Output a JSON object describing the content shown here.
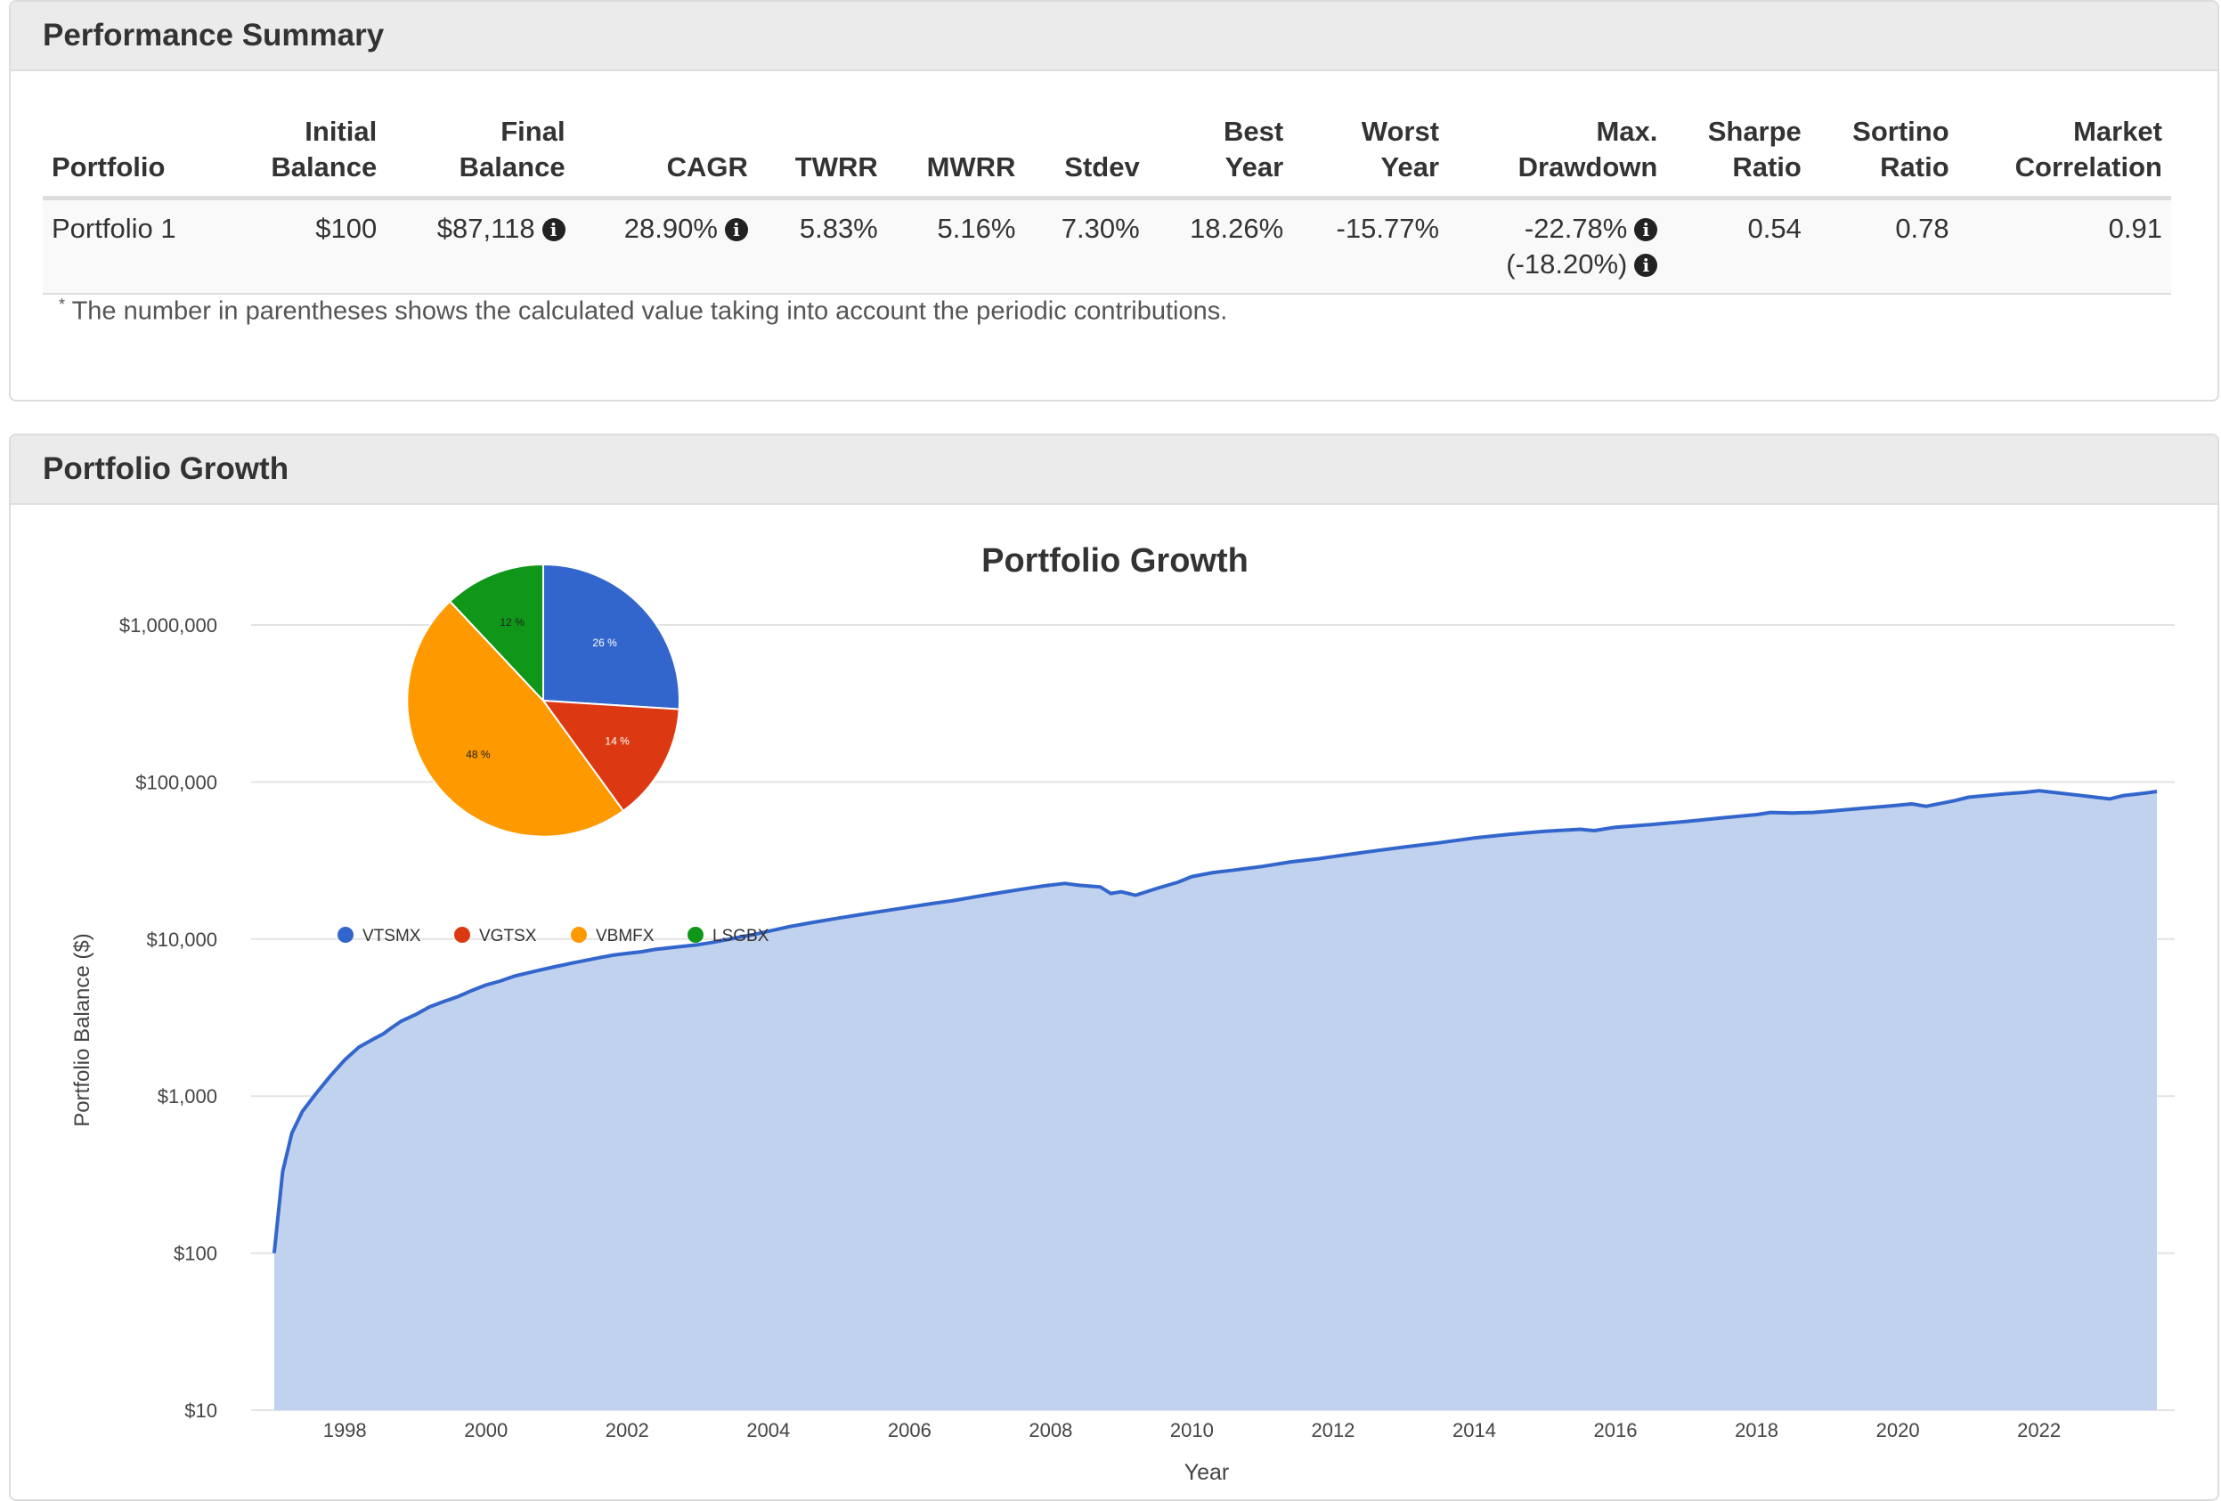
{
  "perf_panel": {
    "title": "Performance Summary",
    "headers": {
      "portfolio": "Portfolio",
      "initial_1": "Initial",
      "initial_2": "Balance",
      "final_1": "Final",
      "final_2": "Balance",
      "cagr": "CAGR",
      "twrr": "TWRR",
      "mwrr": "MWRR",
      "stdev": "Stdev",
      "best_1": "Best",
      "best_2": "Year",
      "worst_1": "Worst",
      "worst_2": "Year",
      "maxdd_1": "Max.",
      "maxdd_2": "Drawdown",
      "sharpe_1": "Sharpe",
      "sharpe_2": "Ratio",
      "sortino_1": "Sortino",
      "sortino_2": "Ratio",
      "mktcorr_1": "Market",
      "mktcorr_2": "Correlation"
    },
    "row": {
      "portfolio": "Portfolio 1",
      "initial": "$100",
      "final": "$87,118",
      "cagr": "28.90%",
      "twrr": "5.83%",
      "mwrr": "5.16%",
      "stdev": "7.30%",
      "best": "18.26%",
      "worst": "-15.77%",
      "maxdd": "-22.78%",
      "maxdd_contrib": "(-18.20%)",
      "sharpe": "0.54",
      "sortino": "0.78",
      "mktcorr": "0.91"
    },
    "info_icon": "i",
    "footnote_mark": "*",
    "footnote": "The number in parentheses shows the calculated value taking into account the periodic contributions."
  },
  "growth_panel": {
    "title": "Portfolio Growth"
  },
  "colors": {
    "line": "#3366cc",
    "area": "#c1d2ef",
    "grid": "#e3e3e3",
    "VTSMX": "#3366cc",
    "VGTSX": "#dc3912",
    "VBMFX": "#ff9900",
    "LSGBX": "#109618"
  },
  "chart_data": [
    {
      "type": "area",
      "title": "Portfolio Growth",
      "xlabel": "Year",
      "ylabel": "Portfolio Balance ($)",
      "y_scale": "log",
      "ylim": [
        10,
        1000000
      ],
      "xlim": [
        1996.9,
        2023.67
      ],
      "grid": true,
      "y_ticks": [
        {
          "value": 10,
          "label": "$10"
        },
        {
          "value": 100,
          "label": "$100"
        },
        {
          "value": 1000,
          "label": "$1,000"
        },
        {
          "value": 10000,
          "label": "$10,000"
        },
        {
          "value": 100000,
          "label": "$100,000"
        },
        {
          "value": 1000000,
          "label": "$1,000,000"
        }
      ],
      "x_ticks": [
        "1998",
        "2000",
        "2002",
        "2004",
        "2006",
        "2008",
        "2010",
        "2012",
        "2014",
        "2016",
        "2018",
        "2020",
        "2022"
      ],
      "series": [
        {
          "name": "Portfolio 1",
          "x": [
            1997.0,
            1997.12,
            1997.25,
            1997.4,
            1997.6,
            1997.8,
            1998.0,
            1998.2,
            1998.4,
            1998.55,
            1998.65,
            1998.8,
            1999.0,
            1999.2,
            1999.4,
            1999.6,
            1999.8,
            2000.0,
            2000.2,
            2000.4,
            2000.6,
            2000.8,
            2001.0,
            2001.2,
            2001.4,
            2001.6,
            2001.8,
            2002.0,
            2002.2,
            2002.4,
            2002.6,
            2002.8,
            2003.0,
            2003.2,
            2003.4,
            2003.6,
            2003.8,
            2004.0,
            2004.3,
            2004.6,
            2005.0,
            2005.3,
            2005.6,
            2006.0,
            2006.3,
            2006.6,
            2007.0,
            2007.3,
            2007.6,
            2007.9,
            2008.2,
            2008.4,
            2008.7,
            2008.85,
            2009.0,
            2009.2,
            2009.5,
            2009.8,
            2010.0,
            2010.3,
            2010.6,
            2011.0,
            2011.4,
            2011.8,
            2012.0,
            2012.5,
            2013.0,
            2013.5,
            2014.0,
            2014.5,
            2015.0,
            2015.5,
            2015.7,
            2016.0,
            2016.5,
            2017.0,
            2017.5,
            2018.0,
            2018.2,
            2018.5,
            2018.8,
            2019.0,
            2019.5,
            2019.9,
            2020.2,
            2020.4,
            2020.8,
            2021.0,
            2021.5,
            2021.8,
            2022.0,
            2022.2,
            2022.5,
            2022.8,
            2023.0,
            2023.2,
            2023.5,
            2023.67
          ],
          "values": [
            100,
            330,
            580,
            800,
            1050,
            1350,
            1700,
            2050,
            2300,
            2500,
            2700,
            3000,
            3300,
            3700,
            4000,
            4300,
            4700,
            5100,
            5400,
            5800,
            6100,
            6400,
            6700,
            7000,
            7300,
            7600,
            7900,
            8100,
            8300,
            8600,
            8800,
            9000,
            9200,
            9500,
            9900,
            10300,
            10700,
            11200,
            12000,
            12700,
            13600,
            14300,
            15000,
            16000,
            16800,
            17500,
            18800,
            19800,
            20800,
            21800,
            22600,
            22000,
            21500,
            19500,
            20000,
            19000,
            21000,
            23000,
            25000,
            26500,
            27500,
            29000,
            31000,
            32500,
            33500,
            36000,
            38500,
            41000,
            44000,
            46500,
            48500,
            50000,
            49000,
            51500,
            53500,
            56000,
            59000,
            62000,
            64000,
            63500,
            64000,
            65000,
            68000,
            70500,
            72500,
            70000,
            76000,
            80000,
            84000,
            86000,
            88000,
            86000,
            83000,
            80000,
            78000,
            82000,
            85000,
            87118
          ]
        }
      ]
    },
    {
      "type": "pie",
      "labels": [
        "VTSMX",
        "VGTSX",
        "VBMFX",
        "LSGBX"
      ],
      "values": [
        26,
        14,
        48,
        12
      ],
      "value_labels": [
        "26 %",
        "14 %",
        "48 %",
        "12 %"
      ],
      "legend": "bottom"
    }
  ]
}
